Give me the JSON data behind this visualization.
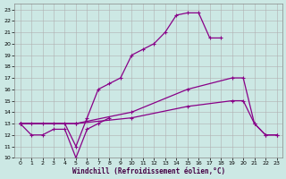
{
  "xlabel": "Windchill (Refroidissement éolien,°C)",
  "bg_color": "#cce8e4",
  "line_color": "#880088",
  "xlim": [
    -0.5,
    23.5
  ],
  "ylim": [
    10,
    23.5
  ],
  "xticks": [
    0,
    1,
    2,
    3,
    4,
    5,
    6,
    7,
    8,
    9,
    10,
    11,
    12,
    13,
    14,
    15,
    16,
    17,
    18,
    19,
    20,
    21,
    22,
    23
  ],
  "yticks": [
    10,
    11,
    12,
    13,
    14,
    15,
    16,
    17,
    18,
    19,
    20,
    21,
    22,
    23
  ],
  "line1_x": [
    0,
    1,
    2,
    3,
    4,
    5,
    6,
    7,
    8,
    9,
    10,
    11,
    12,
    13,
    14,
    15,
    16,
    17,
    18
  ],
  "line1_y": [
    13,
    13,
    13,
    13,
    13,
    11,
    13.5,
    16,
    16.5,
    17,
    19,
    19.5,
    20,
    21,
    22.5,
    22.7,
    22.7,
    20.5,
    20.5
  ],
  "line2_x": [
    0,
    1,
    2,
    3,
    4,
    5,
    6,
    7,
    8
  ],
  "line2_y": [
    13,
    12,
    12,
    12.5,
    12.5,
    10,
    12.5,
    13,
    13.5
  ],
  "line3_x": [
    0,
    5,
    10,
    15,
    19,
    20,
    21,
    22,
    23
  ],
  "line3_y": [
    13,
    13,
    13.5,
    14.5,
    15,
    15,
    13,
    12,
    12
  ],
  "line4_x": [
    0,
    5,
    10,
    15,
    19,
    20,
    21,
    22,
    23
  ],
  "line4_y": [
    13,
    13,
    14,
    16,
    17,
    17,
    13,
    12,
    12
  ],
  "grid_color": "#b0b0b0",
  "marker": "+"
}
